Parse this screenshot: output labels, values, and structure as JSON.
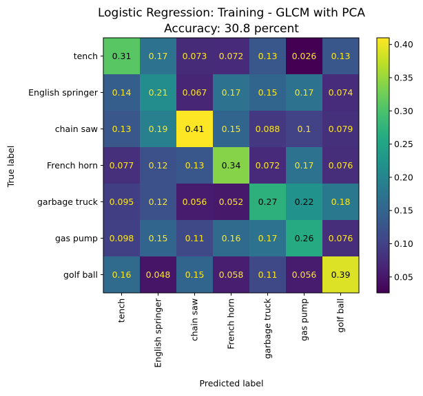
{
  "chart_data": {
    "type": "heatmap",
    "title": "Logistic Regression: Training - GLCM with PCA",
    "subtitle": "Accuracy: 30.8 percent",
    "xlabel": "Predicted label",
    "ylabel": "True label",
    "x_categories": [
      "tench",
      "English springer",
      "chain saw",
      "French horn",
      "garbage truck",
      "gas pump",
      "golf ball"
    ],
    "y_categories": [
      "tench",
      "English springer",
      "chain saw",
      "French horn",
      "garbage truck",
      "gas pump",
      "golf ball"
    ],
    "values": [
      [
        0.31,
        0.17,
        0.073,
        0.072,
        0.13,
        0.026,
        0.13
      ],
      [
        0.14,
        0.21,
        0.067,
        0.17,
        0.15,
        0.17,
        0.074
      ],
      [
        0.13,
        0.19,
        0.41,
        0.15,
        0.088,
        0.1,
        0.079
      ],
      [
        0.077,
        0.12,
        0.13,
        0.34,
        0.072,
        0.17,
        0.076
      ],
      [
        0.095,
        0.12,
        0.056,
        0.052,
        0.27,
        0.22,
        0.18
      ],
      [
        0.098,
        0.15,
        0.11,
        0.16,
        0.17,
        0.26,
        0.076
      ],
      [
        0.16,
        0.048,
        0.15,
        0.058,
        0.11,
        0.056,
        0.39
      ]
    ],
    "value_labels": [
      [
        "0.31",
        "0.17",
        "0.073",
        "0.072",
        "0.13",
        "0.026",
        "0.13"
      ],
      [
        "0.14",
        "0.21",
        "0.067",
        "0.17",
        "0.15",
        "0.17",
        "0.074"
      ],
      [
        "0.13",
        "0.19",
        "0.41",
        "0.15",
        "0.088",
        "0.1",
        "0.079"
      ],
      [
        "0.077",
        "0.12",
        "0.13",
        "0.34",
        "0.072",
        "0.17",
        "0.076"
      ],
      [
        "0.095",
        "0.12",
        "0.056",
        "0.052",
        "0.27",
        "0.22",
        "0.18"
      ],
      [
        "0.098",
        "0.15",
        "0.11",
        "0.16",
        "0.17",
        "0.26",
        "0.076"
      ],
      [
        "0.16",
        "0.048",
        "0.15",
        "0.058",
        "0.11",
        "0.056",
        "0.39"
      ]
    ],
    "colormap": "viridis",
    "color_range": [
      0.026,
      0.41
    ],
    "colorbar_ticks": [
      0.05,
      0.1,
      0.15,
      0.2,
      0.25,
      0.3,
      0.35,
      0.4
    ],
    "colorbar_tick_labels": [
      "0.05",
      "0.10",
      "0.15",
      "0.20",
      "0.25",
      "0.30",
      "0.35",
      "0.40"
    ],
    "text_colors": {
      "light": "#fde725",
      "dark": "#000000"
    }
  }
}
